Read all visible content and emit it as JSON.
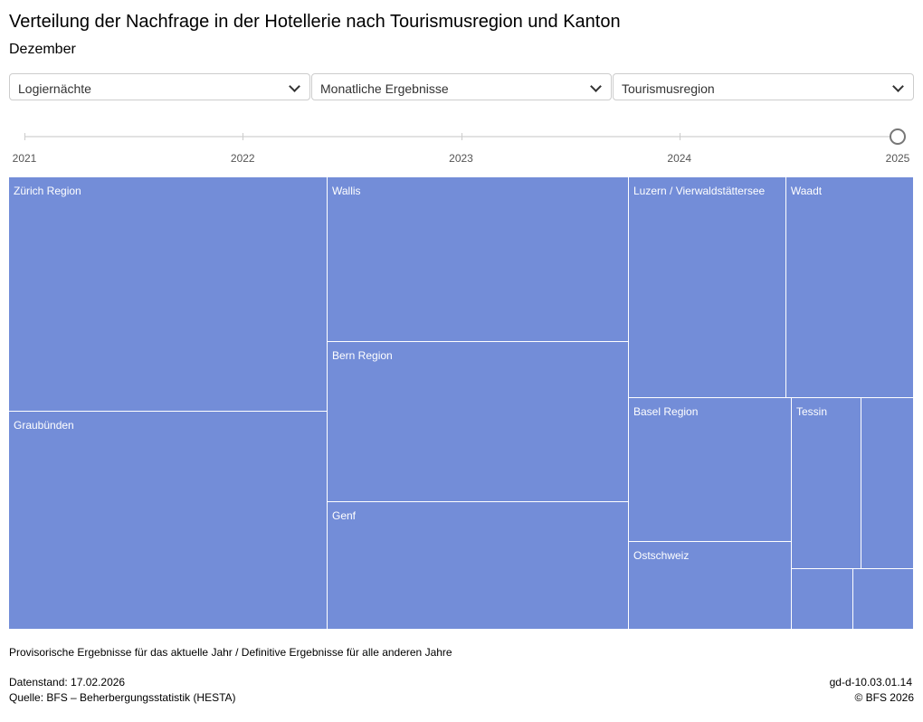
{
  "header": {
    "title": "Verteilung der Nachfrage in der Hotellerie nach Tourismusregion und Kanton",
    "subtitle": "Dezember"
  },
  "controls": {
    "measure": "Logiernächte",
    "period": "Monatliche Ergebnisse",
    "grouping": "Tourismusregion",
    "icon": "chevron-down-icon"
  },
  "timeline": {
    "years": [
      "2021",
      "2022",
      "2023",
      "2024",
      "2025"
    ],
    "selected": "2025"
  },
  "chart_data": {
    "type": "treemap",
    "unit": "share of Logiernächte (%), estimated from area",
    "color": "#738dd8",
    "items": [
      {
        "name": "Zürich Region",
        "value": 18.2
      },
      {
        "name": "Graubünden",
        "value": 17.0
      },
      {
        "name": "Wallis",
        "value": 12.1
      },
      {
        "name": "Bern Region",
        "value": 11.8
      },
      {
        "name": "Genf",
        "value": 9.4
      },
      {
        "name": "Luzern / Vierwaldstättersee",
        "value": 8.5
      },
      {
        "name": "Waadt",
        "value": 6.9
      },
      {
        "name": "Basel Region",
        "value": 5.7
      },
      {
        "name": "Ostschweiz",
        "value": 3.5
      },
      {
        "name": "Tessin",
        "value": 2.9
      },
      {
        "name": "",
        "value": 2.2
      },
      {
        "name": "",
        "value": 0.9
      },
      {
        "name": "",
        "value": 0.9
      }
    ]
  },
  "footer": {
    "note": "Provisorische Ergebnisse für das aktuelle Jahr / Definitive Ergebnisse für alle anderen Jahre",
    "date": "Datenstand: 17.02.2026",
    "source": "Quelle: BFS – Beherbergungsstatistik (HESTA)",
    "code": "gd-d-10.03.01.14",
    "copyright": "© BFS 2026"
  }
}
